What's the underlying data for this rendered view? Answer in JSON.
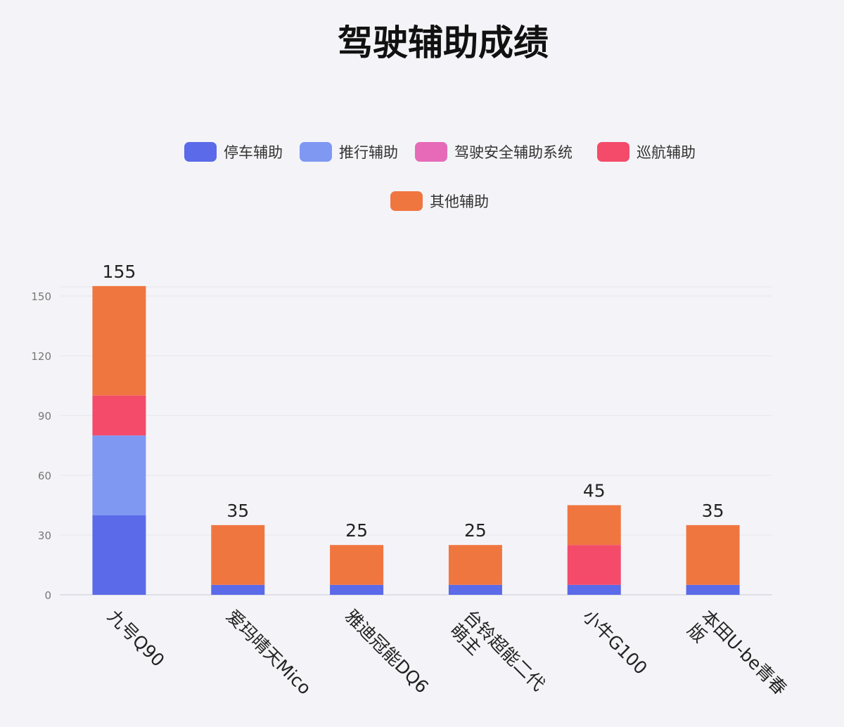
{
  "chart_data": {
    "type": "bar",
    "stacked": true,
    "title": "驾驶辅助成绩",
    "categories": [
      "九号Q90",
      "爱玛晴天Mico",
      "雅迪冠能DQ6",
      "台铃超能二代 萌主",
      "小牛G100",
      "本田U-be青春 版"
    ],
    "category_lines": [
      [
        "九号Q90"
      ],
      [
        "爱玛晴天Mico"
      ],
      [
        "雅迪冠能DQ6"
      ],
      [
        "台铃超能二代",
        "萌主"
      ],
      [
        "小牛G100"
      ],
      [
        "本田U-be青春",
        "版"
      ]
    ],
    "series": [
      {
        "name": "停车辅助",
        "color": "#5b6ae8",
        "values": [
          40,
          5,
          5,
          5,
          5,
          5
        ]
      },
      {
        "name": "推行辅助",
        "color": "#7f98f2",
        "values": [
          40,
          0,
          0,
          0,
          0,
          0
        ]
      },
      {
        "name": "驾驶安全辅助系统",
        "color": "#e66ab8",
        "values": [
          0,
          0,
          0,
          0,
          0,
          0
        ]
      },
      {
        "name": "巡航辅助",
        "color": "#f44b6a",
        "values": [
          20,
          0,
          0,
          0,
          20,
          0
        ]
      },
      {
        "name": "其他辅助",
        "color": "#f07640",
        "values": [
          55,
          30,
          20,
          20,
          20,
          30
        ]
      }
    ],
    "totals": [
      155,
      35,
      25,
      25,
      45,
      35
    ],
    "yticks": [
      0,
      30,
      60,
      90,
      120,
      150
    ],
    "ylim": [
      0,
      155
    ],
    "grid": true,
    "legend_position": "top"
  }
}
